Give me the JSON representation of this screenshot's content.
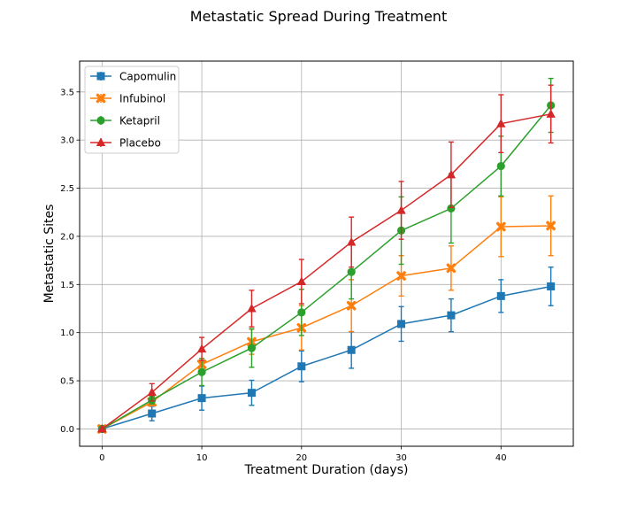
{
  "chart_data": {
    "type": "line",
    "title": "Metastatic Spread During Treatment",
    "xlabel": "Treatment Duration (days)",
    "ylabel": "Metastatic Sites",
    "xlim": [
      -2.25,
      47.25
    ],
    "ylim": [
      -0.18,
      3.82
    ],
    "xticks": [
      0,
      10,
      20,
      30,
      40
    ],
    "yticks": [
      0.0,
      0.5,
      1.0,
      1.5,
      2.0,
      2.5,
      3.0,
      3.5
    ],
    "ytick_labels": [
      "0.0",
      "0.5",
      "1.0",
      "1.5",
      "2.0",
      "2.5",
      "3.0",
      "3.5"
    ],
    "grid": true,
    "legend_position": "top-left",
    "x": [
      0,
      5,
      10,
      15,
      20,
      25,
      30,
      35,
      40,
      45
    ],
    "series": [
      {
        "name": "Capomulin",
        "color": "#1f77b4",
        "marker": "square",
        "values": [
          0.0,
          0.16,
          0.32,
          0.375,
          0.65,
          0.82,
          1.09,
          1.18,
          1.38,
          1.48
        ],
        "errors": [
          0.0,
          0.075,
          0.125,
          0.13,
          0.16,
          0.19,
          0.18,
          0.17,
          0.17,
          0.2
        ]
      },
      {
        "name": "Infubinol",
        "color": "#ff7f0e",
        "marker": "x",
        "values": [
          0.0,
          0.28,
          0.67,
          0.905,
          1.05,
          1.28,
          1.59,
          1.67,
          2.1,
          2.11
        ],
        "errors": [
          0.0,
          0.04,
          0.06,
          0.13,
          0.23,
          0.27,
          0.21,
          0.23,
          0.31,
          0.31
        ]
      },
      {
        "name": "Ketapril",
        "color": "#2ca02c",
        "marker": "circle",
        "values": [
          0.0,
          0.3,
          0.59,
          0.84,
          1.21,
          1.63,
          2.06,
          2.29,
          2.73,
          3.36
        ],
        "errors": [
          0.0,
          0.04,
          0.14,
          0.2,
          0.24,
          0.28,
          0.35,
          0.36,
          0.31,
          0.28
        ]
      },
      {
        "name": "Placebo",
        "color": "#d62728",
        "marker": "triangle",
        "values": [
          0.0,
          0.38,
          0.83,
          1.25,
          1.53,
          1.94,
          2.27,
          2.64,
          3.17,
          3.27
        ],
        "errors": [
          0.0,
          0.09,
          0.12,
          0.19,
          0.23,
          0.26,
          0.3,
          0.34,
          0.3,
          0.3
        ]
      }
    ]
  }
}
